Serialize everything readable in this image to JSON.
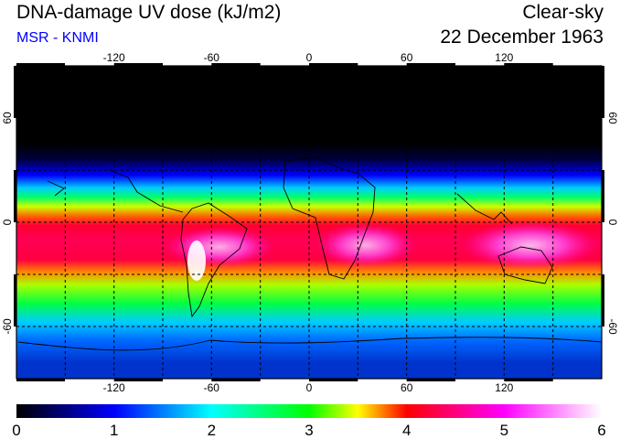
{
  "header": {
    "title": "DNA-damage UV dose (kJ/m2)",
    "subtitle": "MSR - KNMI",
    "sky_condition": "Clear-sky",
    "date": "22 December 1963"
  },
  "map": {
    "lon_ticks": [
      "-120",
      "-60",
      "0",
      "60",
      "120"
    ],
    "lat_ticks": [
      "60",
      "0",
      "-60"
    ],
    "lon_range": [
      -180,
      180
    ],
    "lat_range": [
      -90,
      90
    ],
    "grid": "dashed 30-degree graticule"
  },
  "colorbar": {
    "labels": [
      "0",
      "1",
      "2",
      "3",
      "4",
      "5",
      "6"
    ],
    "range": [
      0,
      6
    ],
    "colors": [
      "#000000",
      "#0000ff",
      "#00ffff",
      "#00ff00",
      "#ffff00",
      "#ff0000",
      "#ff00ff",
      "#ffffff"
    ]
  }
}
